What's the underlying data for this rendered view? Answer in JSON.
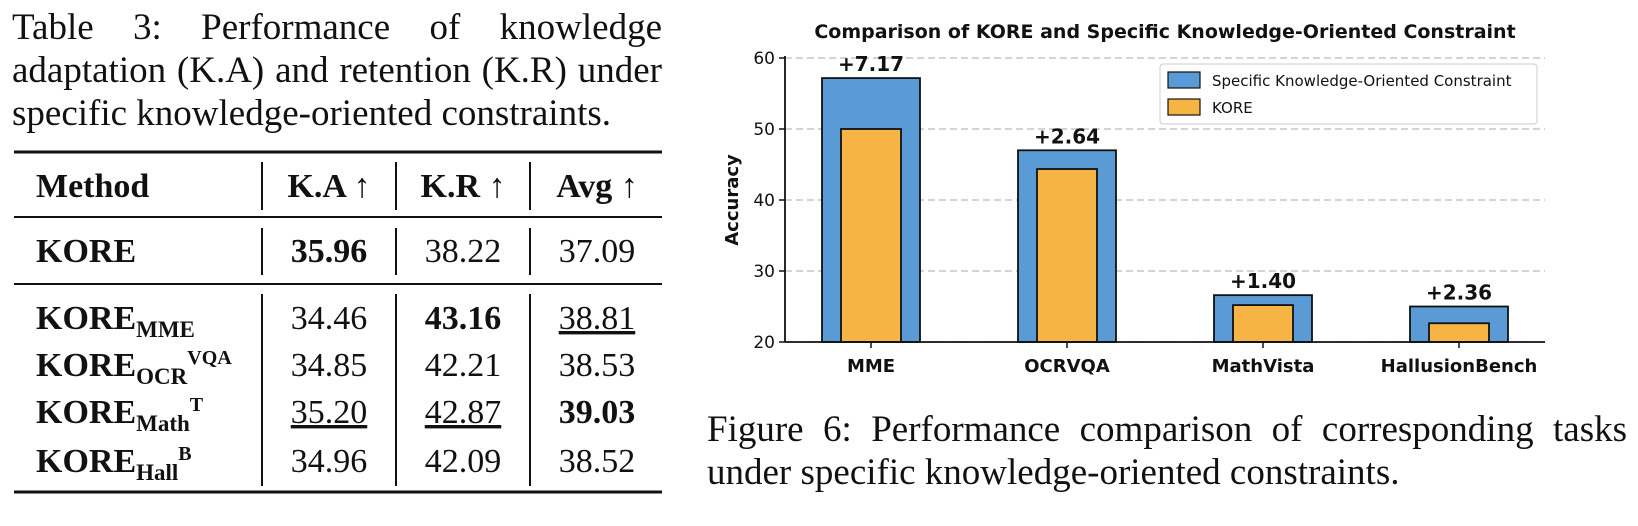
{
  "table": {
    "caption": "Table 3: Performance of knowledge adaptation (K.A) and retention (K.R) under specific knowledge-oriented constraints.",
    "header": [
      "Method",
      "K.A ↑",
      "K.R ↑",
      "Avg ↑"
    ],
    "rows": [
      {
        "method": "KORE",
        "cells": [
          "35.96",
          "38.22",
          "37.09"
        ]
      },
      {
        "method": "KORE",
        "sub": "MME",
        "cells": [
          "34.46",
          "43.16",
          "38.81"
        ]
      },
      {
        "method": "KORE",
        "sub": "OCR",
        "sup": "VQA",
        "cells": [
          "34.85",
          "42.21",
          "38.53"
        ]
      },
      {
        "method": "KORE",
        "sub": "Math",
        "sup": "T",
        "cells": [
          "35.20",
          "42.87",
          "39.03"
        ]
      },
      {
        "method": "KORE",
        "sub": "Hall",
        "sup": "B",
        "cells": [
          "34.96",
          "42.09",
          "38.52"
        ]
      }
    ]
  },
  "chart_data": {
    "type": "bar",
    "title": "Comparison of KORE and Specific Knowledge-Oriented Constraint",
    "y_label": "Accuracy",
    "categories": [
      "MME",
      "OCRVQA",
      "MathVista",
      "HallusionBench"
    ],
    "series": [
      {
        "name": "Specific Knowledge-Oriented Constraint",
        "color": "#5b9bd5",
        "values": [
          57.17,
          47.0,
          26.6,
          25.0
        ]
      },
      {
        "name": "KORE",
        "color": "#f6b445",
        "values": [
          50.0,
          44.36,
          25.2,
          22.64
        ]
      }
    ],
    "annotations": [
      "+7.17",
      "+2.64",
      "+1.40",
      "+2.36"
    ],
    "ylim": [
      20,
      60
    ],
    "yticks": [
      20,
      30,
      40,
      50,
      60
    ],
    "grid": true,
    "legend": "upper right"
  },
  "figure_caption": "Figure 6: Performance comparison of corresponding tasks under specific knowledge-oriented constraints."
}
